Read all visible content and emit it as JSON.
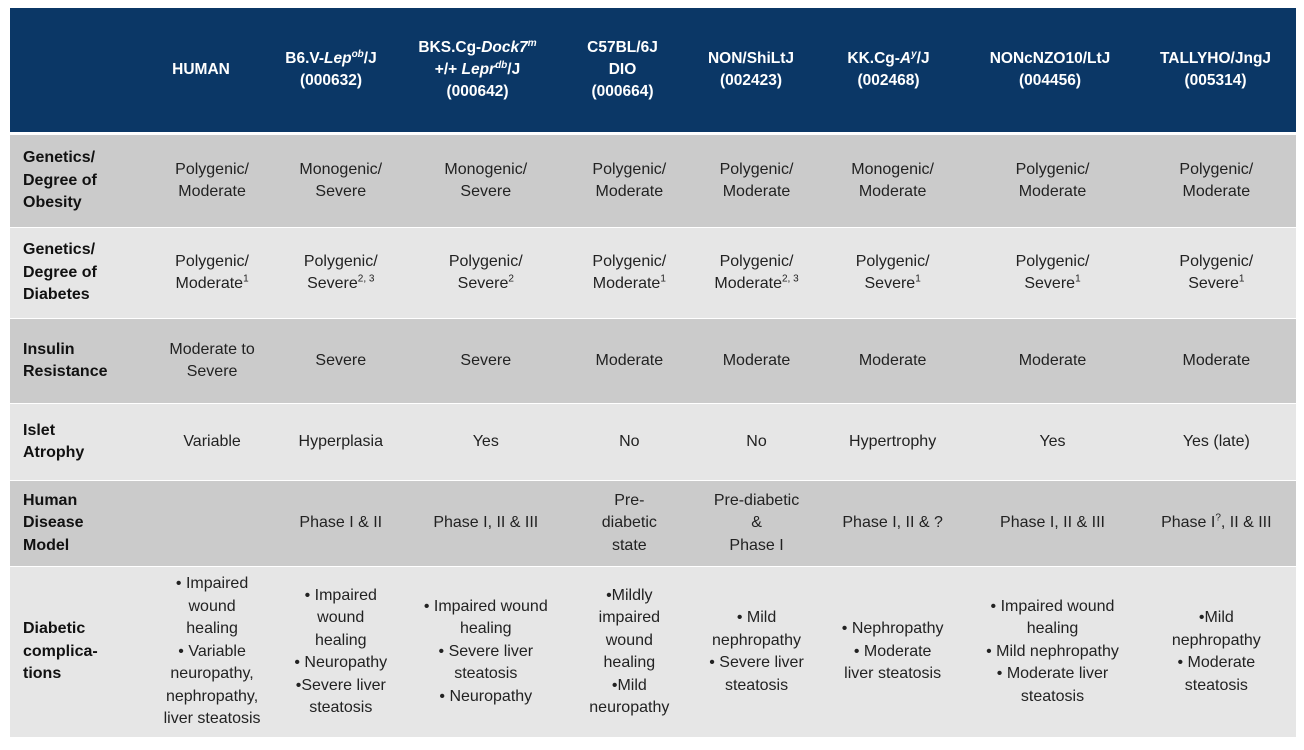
{
  "header": [
    [],
    [
      [
        [
          "HUMAN"
        ]
      ]
    ],
    [
      [
        [
          "B6.V-"
        ],
        [
          "Lep",
          "i"
        ],
        [
          "ob",
          "si"
        ],
        [
          "/J"
        ]
      ],
      [
        [
          "(000632)"
        ]
      ]
    ],
    [
      [
        [
          "BKS.Cg-"
        ],
        [
          "Dock7",
          "i"
        ],
        [
          "m",
          "si"
        ]
      ],
      [
        [
          "+/+ "
        ],
        [
          "Lepr",
          "i"
        ],
        [
          "db",
          "si"
        ],
        [
          "/J"
        ]
      ],
      [
        [
          "(000642)"
        ]
      ]
    ],
    [
      [
        [
          "C57BL/6J"
        ]
      ],
      [
        [
          "DIO"
        ]
      ],
      [
        [
          "(000664)"
        ]
      ]
    ],
    [
      [
        [
          "NON/ShiLtJ"
        ]
      ],
      [
        [
          "(002423)"
        ]
      ]
    ],
    [
      [
        [
          "KK.Cg-"
        ],
        [
          "A",
          "i"
        ],
        [
          "y",
          "si"
        ],
        [
          "/J"
        ]
      ],
      [
        [
          "(002468)"
        ]
      ]
    ],
    [
      [
        [
          "NONcNZO10/LtJ"
        ]
      ],
      [
        [
          "(004456)"
        ]
      ]
    ],
    [
      [
        [
          "TALLYHO/JngJ"
        ]
      ],
      [
        [
          "(005314)"
        ]
      ]
    ]
  ],
  "rows": [
    {
      "label": [
        "Genetics/",
        "Degree of",
        "Obesity"
      ],
      "cells": [
        [
          [
            [
              "Polygenic/"
            ]
          ],
          [
            [
              "Moderate"
            ]
          ]
        ],
        [
          [
            [
              "Monogenic/"
            ]
          ],
          [
            [
              "Severe"
            ]
          ]
        ],
        [
          [
            [
              "Monogenic/"
            ]
          ],
          [
            [
              "Severe"
            ]
          ]
        ],
        [
          [
            [
              "Polygenic/"
            ]
          ],
          [
            [
              "Moderate"
            ]
          ]
        ],
        [
          [
            [
              "Polygenic/"
            ]
          ],
          [
            [
              "Moderate"
            ]
          ]
        ],
        [
          [
            [
              "Monogenic/"
            ]
          ],
          [
            [
              "Moderate"
            ]
          ]
        ],
        [
          [
            [
              "Polygenic/"
            ]
          ],
          [
            [
              "Moderate"
            ]
          ]
        ],
        [
          [
            [
              "Polygenic/"
            ]
          ],
          [
            [
              "Moderate"
            ]
          ]
        ]
      ]
    },
    {
      "label": [
        "Genetics/",
        "Degree of",
        "Diabetes"
      ],
      "cells": [
        [
          [
            [
              "Polygenic/"
            ]
          ],
          [
            [
              "Moderate"
            ],
            [
              "1",
              "s"
            ]
          ]
        ],
        [
          [
            [
              "Polygenic/"
            ]
          ],
          [
            [
              "Severe"
            ],
            [
              "2, 3",
              "s"
            ]
          ]
        ],
        [
          [
            [
              "Polygenic/"
            ]
          ],
          [
            [
              "Severe"
            ],
            [
              "2",
              "s"
            ]
          ]
        ],
        [
          [
            [
              "Polygenic/"
            ]
          ],
          [
            [
              "Moderate"
            ],
            [
              "1",
              "s"
            ]
          ]
        ],
        [
          [
            [
              "Polygenic/"
            ]
          ],
          [
            [
              "Moderate"
            ],
            [
              "2, 3",
              "s"
            ]
          ]
        ],
        [
          [
            [
              "Polygenic/"
            ]
          ],
          [
            [
              "Severe"
            ],
            [
              "1",
              "s"
            ]
          ]
        ],
        [
          [
            [
              "Polygenic/"
            ]
          ],
          [
            [
              "Severe"
            ],
            [
              "1",
              "s"
            ]
          ]
        ],
        [
          [
            [
              "Polygenic/"
            ]
          ],
          [
            [
              "Severe"
            ],
            [
              "1",
              "s"
            ]
          ]
        ]
      ]
    },
    {
      "label": [
        "Insulin",
        "Resistance"
      ],
      "cells": [
        [
          [
            [
              "Moderate to"
            ]
          ],
          [
            [
              "Severe"
            ]
          ]
        ],
        [
          [
            [
              "Severe"
            ]
          ]
        ],
        [
          [
            [
              "Severe"
            ]
          ]
        ],
        [
          [
            [
              "Moderate"
            ]
          ]
        ],
        [
          [
            [
              "Moderate"
            ]
          ]
        ],
        [
          [
            [
              "Moderate"
            ]
          ]
        ],
        [
          [
            [
              "Moderate"
            ]
          ]
        ],
        [
          [
            [
              "Moderate"
            ]
          ]
        ]
      ]
    },
    {
      "label": [
        "Islet",
        "Atrophy"
      ],
      "cells": [
        [
          [
            [
              "Variable"
            ]
          ]
        ],
        [
          [
            [
              "Hyperplasia"
            ]
          ]
        ],
        [
          [
            [
              "Yes"
            ]
          ]
        ],
        [
          [
            [
              "No"
            ]
          ]
        ],
        [
          [
            [
              "No"
            ]
          ]
        ],
        [
          [
            [
              "Hypertrophy"
            ]
          ]
        ],
        [
          [
            [
              "Yes"
            ]
          ]
        ],
        [
          [
            [
              "Yes (late)"
            ]
          ]
        ]
      ]
    },
    {
      "label": [
        "Human",
        "Disease",
        "Model"
      ],
      "cells": [
        [],
        [
          [
            [
              "Phase I & II"
            ]
          ]
        ],
        [
          [
            [
              "Phase I, II & III"
            ]
          ]
        ],
        [
          [
            [
              "Pre-"
            ]
          ],
          [
            [
              "diabetic"
            ]
          ],
          [
            [
              "state"
            ]
          ]
        ],
        [
          [
            [
              "Pre-diabetic"
            ]
          ],
          [
            [
              "&"
            ]
          ],
          [
            [
              "Phase I"
            ]
          ]
        ],
        [
          [
            [
              "Phase I, II & ?"
            ]
          ]
        ],
        [
          [
            [
              "Phase I, II & III"
            ]
          ]
        ],
        [
          [
            [
              "Phase I"
            ],
            [
              "?",
              "s"
            ],
            [
              ", II & III"
            ]
          ]
        ]
      ]
    },
    {
      "label": [
        "Diabetic",
        "complica-",
        "tions"
      ],
      "cells": [
        [
          [
            [
              "• Impaired"
            ]
          ],
          [
            [
              "wound"
            ]
          ],
          [
            [
              "healing"
            ]
          ],
          [
            [
              "• Variable"
            ]
          ],
          [
            [
              "neuropathy,"
            ]
          ],
          [
            [
              "nephropathy,"
            ]
          ],
          [
            [
              "liver steatosis"
            ]
          ]
        ],
        [
          [
            [
              "• Impaired"
            ]
          ],
          [
            [
              "wound"
            ]
          ],
          [
            [
              "healing"
            ]
          ],
          [
            [
              "• Neuropathy"
            ]
          ],
          [
            [
              "•Severe liver"
            ]
          ],
          [
            [
              "steatosis"
            ]
          ]
        ],
        [
          [
            [
              "• Impaired wound"
            ]
          ],
          [
            [
              "healing"
            ]
          ],
          [
            [
              "• Severe liver"
            ]
          ],
          [
            [
              "steatosis"
            ]
          ],
          [
            [
              "• Neuropathy"
            ]
          ]
        ],
        [
          [
            [
              "•Mildly"
            ]
          ],
          [
            [
              "impaired"
            ]
          ],
          [
            [
              "wound"
            ]
          ],
          [
            [
              "healing"
            ]
          ],
          [
            [
              "•Mild"
            ]
          ],
          [
            [
              "neuropathy"
            ]
          ]
        ],
        [
          [
            [
              "• Mild"
            ]
          ],
          [
            [
              "nephropathy"
            ]
          ],
          [
            [
              "• Severe liver"
            ]
          ],
          [
            [
              "steatosis"
            ]
          ]
        ],
        [
          [
            [
              "• Nephropathy"
            ]
          ],
          [
            [
              "• Moderate"
            ]
          ],
          [
            [
              "liver steatosis"
            ]
          ]
        ],
        [
          [
            [
              "• Impaired wound"
            ]
          ],
          [
            [
              "healing"
            ]
          ],
          [
            [
              "• Mild nephropathy"
            ]
          ],
          [
            [
              "• Moderate liver"
            ]
          ],
          [
            [
              "steatosis"
            ]
          ]
        ],
        [
          [
            [
              "•Mild"
            ]
          ],
          [
            [
              "nephropathy"
            ]
          ],
          [
            [
              "• Moderate"
            ]
          ],
          [
            [
              "steatosis"
            ]
          ]
        ]
      ]
    }
  ],
  "colors": {
    "header": "#0b3766",
    "row_dark": "#cbcbcb",
    "row_light": "#e6e6e6"
  }
}
